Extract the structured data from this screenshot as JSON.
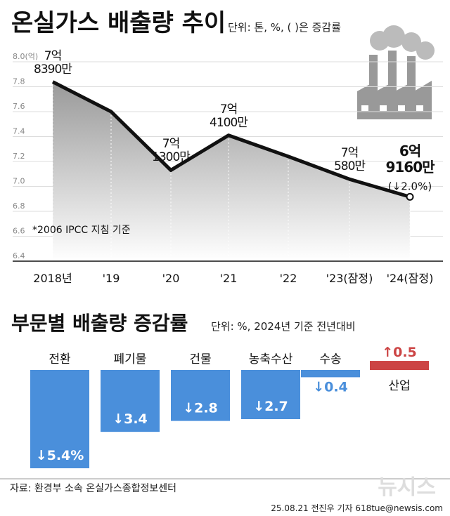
{
  "chart_data": [
    {
      "type": "line",
      "title": "온실가스 배출량 추이",
      "subtitle": "단위: 톤, %, ( )은 증감률",
      "categories": [
        "2018년",
        "'19",
        "'20",
        "'21",
        "'22",
        "'23(잠정)",
        "'24(잠정)"
      ],
      "values": [
        7.839,
        7.6,
        7.13,
        7.41,
        7.24,
        7.058,
        6.916
      ],
      "value_labels": [
        "7억\n8390만",
        null,
        "7억\n1300만",
        "7억\n4100만",
        null,
        "7억\n580만",
        "6억\n9160만"
      ],
      "annotations": [
        "(↓2.0%)",
        "*2006 IPCC 지침 기준"
      ],
      "color": "#111111",
      "ylim": [
        6.4,
        8.0
      ],
      "yticks": [
        6.4,
        6.6,
        6.8,
        {
          "value": 7,
          "label": "7.0"
        },
        7.2,
        7.4,
        7.6,
        7.8,
        {
          "value": 8,
          "label": "8.0(억)"
        }
      ],
      "grid": true
    },
    {
      "type": "bar",
      "title": "부문별 배출량 증감률",
      "subtitle": "단위: %, 2024년 기준 전년대비",
      "categories": [
        "전환",
        "폐기물",
        "건물",
        "농축수산",
        "수송",
        "산업"
      ],
      "values": [
        -5.4,
        -3.4,
        -2.8,
        -2.7,
        -0.4,
        0.5
      ],
      "value_labels": [
        "↓5.4%",
        "↓3.4",
        "↓2.8",
        "↓2.7",
        "↓0.4",
        "↑0.5"
      ],
      "colors": [
        "#4a8fdb",
        "#4a8fdb",
        "#4a8fdb",
        "#4a8fdb",
        "#4a8fdb",
        "#cc4444"
      ]
    }
  ],
  "footer": {
    "source": "자료: 환경부 소속 온실가스종합정보센터",
    "credit": "25.08.21 전진우 기자 618tue@newsis.com",
    "watermark": "뉴시스"
  }
}
